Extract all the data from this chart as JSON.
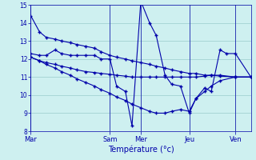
{
  "xlabel": "Température (°c)",
  "bg_color": "#cef0f0",
  "grid_color": "#99cccc",
  "line_color": "#0000aa",
  "ylim": [
    8,
    15
  ],
  "yticks": [
    8,
    9,
    10,
    11,
    12,
    13,
    14,
    15
  ],
  "day_labels": [
    "Mar",
    "Sam",
    "Mer",
    "Jeu",
    "Ven"
  ],
  "day_positions": [
    0.0,
    0.36,
    0.5,
    0.72,
    0.93
  ],
  "series1_x": [
    0.0,
    0.04,
    0.07,
    0.11,
    0.14,
    0.18,
    0.21,
    0.25,
    0.29,
    0.32,
    0.36,
    0.39,
    0.43,
    0.46,
    0.5,
    0.54,
    0.57,
    0.61,
    0.64,
    0.68,
    0.72,
    0.75,
    0.79,
    0.82,
    0.86,
    0.93,
    1.0
  ],
  "series1_y": [
    14.4,
    13.5,
    13.2,
    13.1,
    13.0,
    12.9,
    12.8,
    12.7,
    12.6,
    12.4,
    12.2,
    12.1,
    12.0,
    11.9,
    11.8,
    11.7,
    11.6,
    11.5,
    11.4,
    11.3,
    11.2,
    11.2,
    11.1,
    11.1,
    11.05,
    11.0,
    11.0
  ],
  "series2_x": [
    0.0,
    0.04,
    0.07,
    0.11,
    0.14,
    0.18,
    0.21,
    0.25,
    0.29,
    0.32,
    0.36,
    0.39,
    0.43,
    0.46,
    0.5,
    0.54,
    0.57,
    0.61,
    0.64,
    0.68,
    0.72,
    0.75,
    0.79,
    0.82,
    0.86,
    0.89,
    0.93,
    1.0
  ],
  "series2_y": [
    12.3,
    12.2,
    12.2,
    12.5,
    12.3,
    12.2,
    12.2,
    12.2,
    12.2,
    12.0,
    12.0,
    10.5,
    10.2,
    8.3,
    15.2,
    14.0,
    13.3,
    11.1,
    10.6,
    10.5,
    9.0,
    9.8,
    10.4,
    10.2,
    12.5,
    12.3,
    12.3,
    11.0
  ],
  "series3_x": [
    0.0,
    0.04,
    0.07,
    0.11,
    0.14,
    0.18,
    0.21,
    0.25,
    0.29,
    0.32,
    0.36,
    0.39,
    0.43,
    0.46,
    0.5,
    0.54,
    0.57,
    0.61,
    0.64,
    0.68,
    0.72,
    0.75,
    0.79,
    0.82,
    0.86,
    0.93,
    1.0
  ],
  "series3_y": [
    12.1,
    11.9,
    11.8,
    11.7,
    11.6,
    11.5,
    11.4,
    11.3,
    11.25,
    11.2,
    11.15,
    11.1,
    11.05,
    11.0,
    11.0,
    11.0,
    11.0,
    11.0,
    11.0,
    11.0,
    11.0,
    11.0,
    11.05,
    11.1,
    11.1,
    11.0,
    11.0
  ],
  "series4_x": [
    0.0,
    0.04,
    0.07,
    0.11,
    0.14,
    0.18,
    0.21,
    0.25,
    0.29,
    0.32,
    0.36,
    0.39,
    0.43,
    0.46,
    0.5,
    0.54,
    0.57,
    0.61,
    0.64,
    0.68,
    0.72,
    0.75,
    0.79,
    0.82,
    0.86,
    0.93,
    1.0
  ],
  "series4_y": [
    12.1,
    11.9,
    11.7,
    11.5,
    11.3,
    11.1,
    10.9,
    10.7,
    10.5,
    10.3,
    10.1,
    9.9,
    9.7,
    9.5,
    9.3,
    9.1,
    9.0,
    9.0,
    9.1,
    9.2,
    9.1,
    9.8,
    10.2,
    10.5,
    10.8,
    11.0,
    11.0
  ]
}
